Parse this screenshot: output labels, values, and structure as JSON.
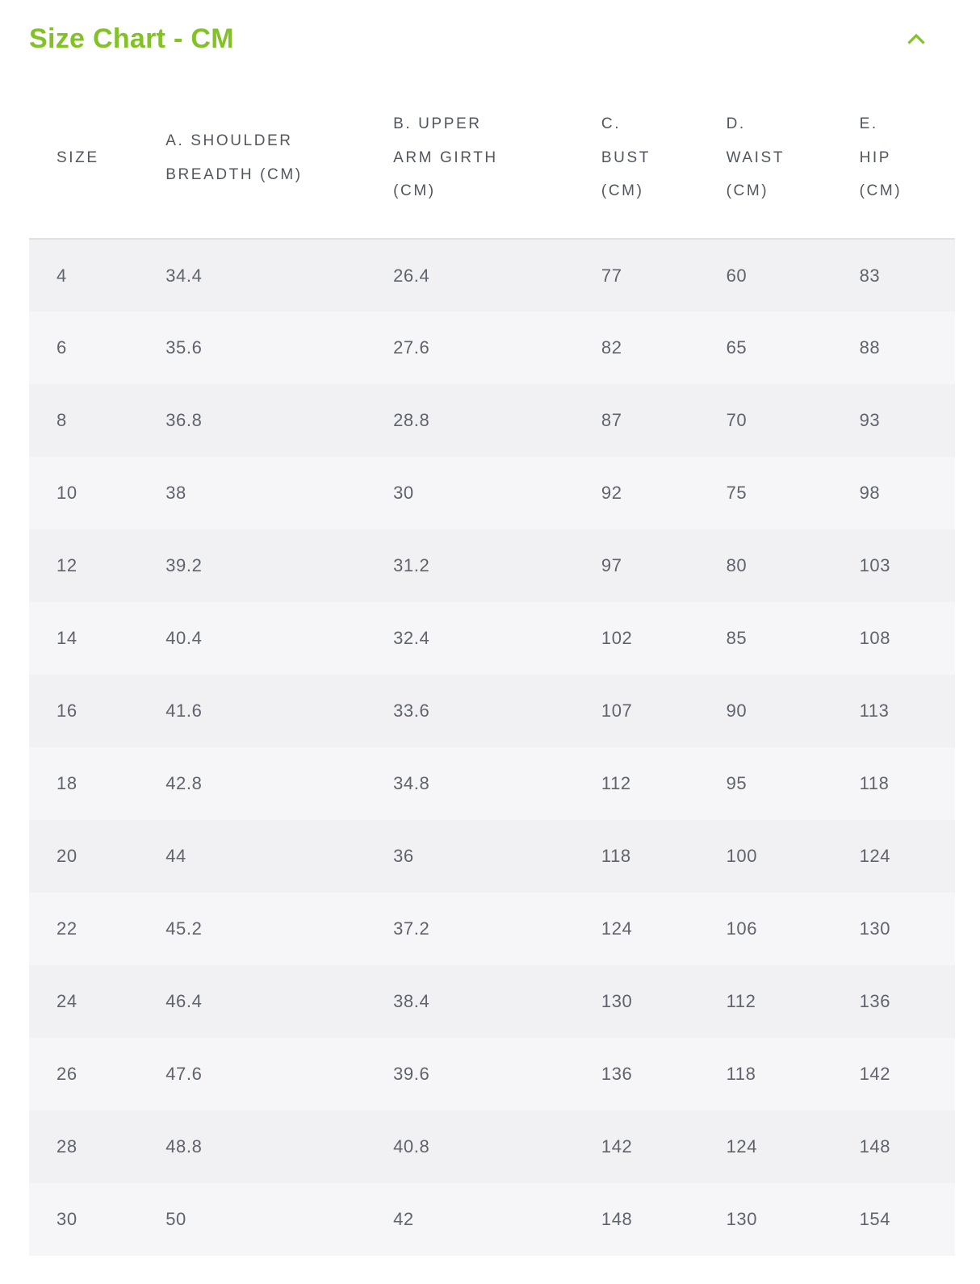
{
  "theme": {
    "accent_color": "#82c226",
    "header_text_color": "#51565f",
    "cell_text_color": "#5f636c",
    "row_stripe_dark": "#f1f1f3",
    "row_stripe_light": "#f6f6f8"
  },
  "panel": {
    "title": "Size Chart - CM",
    "collapse_icon": "chevron-up-icon",
    "state": "expanded"
  },
  "table": {
    "columns": [
      {
        "id": "size",
        "lines": [
          "SIZE"
        ]
      },
      {
        "id": "shoulder-breadth",
        "lines": [
          "A. SHOULDER",
          "BREADTH (CM)"
        ]
      },
      {
        "id": "upper-arm-girth",
        "lines": [
          "B. UPPER",
          "ARM GIRTH",
          "(CM)"
        ]
      },
      {
        "id": "bust",
        "lines": [
          "C.",
          "BUST",
          "(CM)"
        ]
      },
      {
        "id": "waist",
        "lines": [
          "D.",
          "WAIST",
          "(CM)"
        ]
      },
      {
        "id": "hip",
        "lines": [
          "E.",
          "HIP",
          "(CM)"
        ]
      }
    ],
    "rows": [
      [
        "4",
        "34.4",
        "26.4",
        "77",
        "60",
        "83"
      ],
      [
        "6",
        "35.6",
        "27.6",
        "82",
        "65",
        "88"
      ],
      [
        "8",
        "36.8",
        "28.8",
        "87",
        "70",
        "93"
      ],
      [
        "10",
        "38",
        "30",
        "92",
        "75",
        "98"
      ],
      [
        "12",
        "39.2",
        "31.2",
        "97",
        "80",
        "103"
      ],
      [
        "14",
        "40.4",
        "32.4",
        "102",
        "85",
        "108"
      ],
      [
        "16",
        "41.6",
        "33.6",
        "107",
        "90",
        "113"
      ],
      [
        "18",
        "42.8",
        "34.8",
        "112",
        "95",
        "118"
      ],
      [
        "20",
        "44",
        "36",
        "118",
        "100",
        "124"
      ],
      [
        "22",
        "45.2",
        "37.2",
        "124",
        "106",
        "130"
      ],
      [
        "24",
        "46.4",
        "38.4",
        "130",
        "112",
        "136"
      ],
      [
        "26",
        "47.6",
        "39.6",
        "136",
        "118",
        "142"
      ],
      [
        "28",
        "48.8",
        "40.8",
        "142",
        "124",
        "148"
      ],
      [
        "30",
        "50",
        "42",
        "148",
        "130",
        "154"
      ]
    ]
  }
}
